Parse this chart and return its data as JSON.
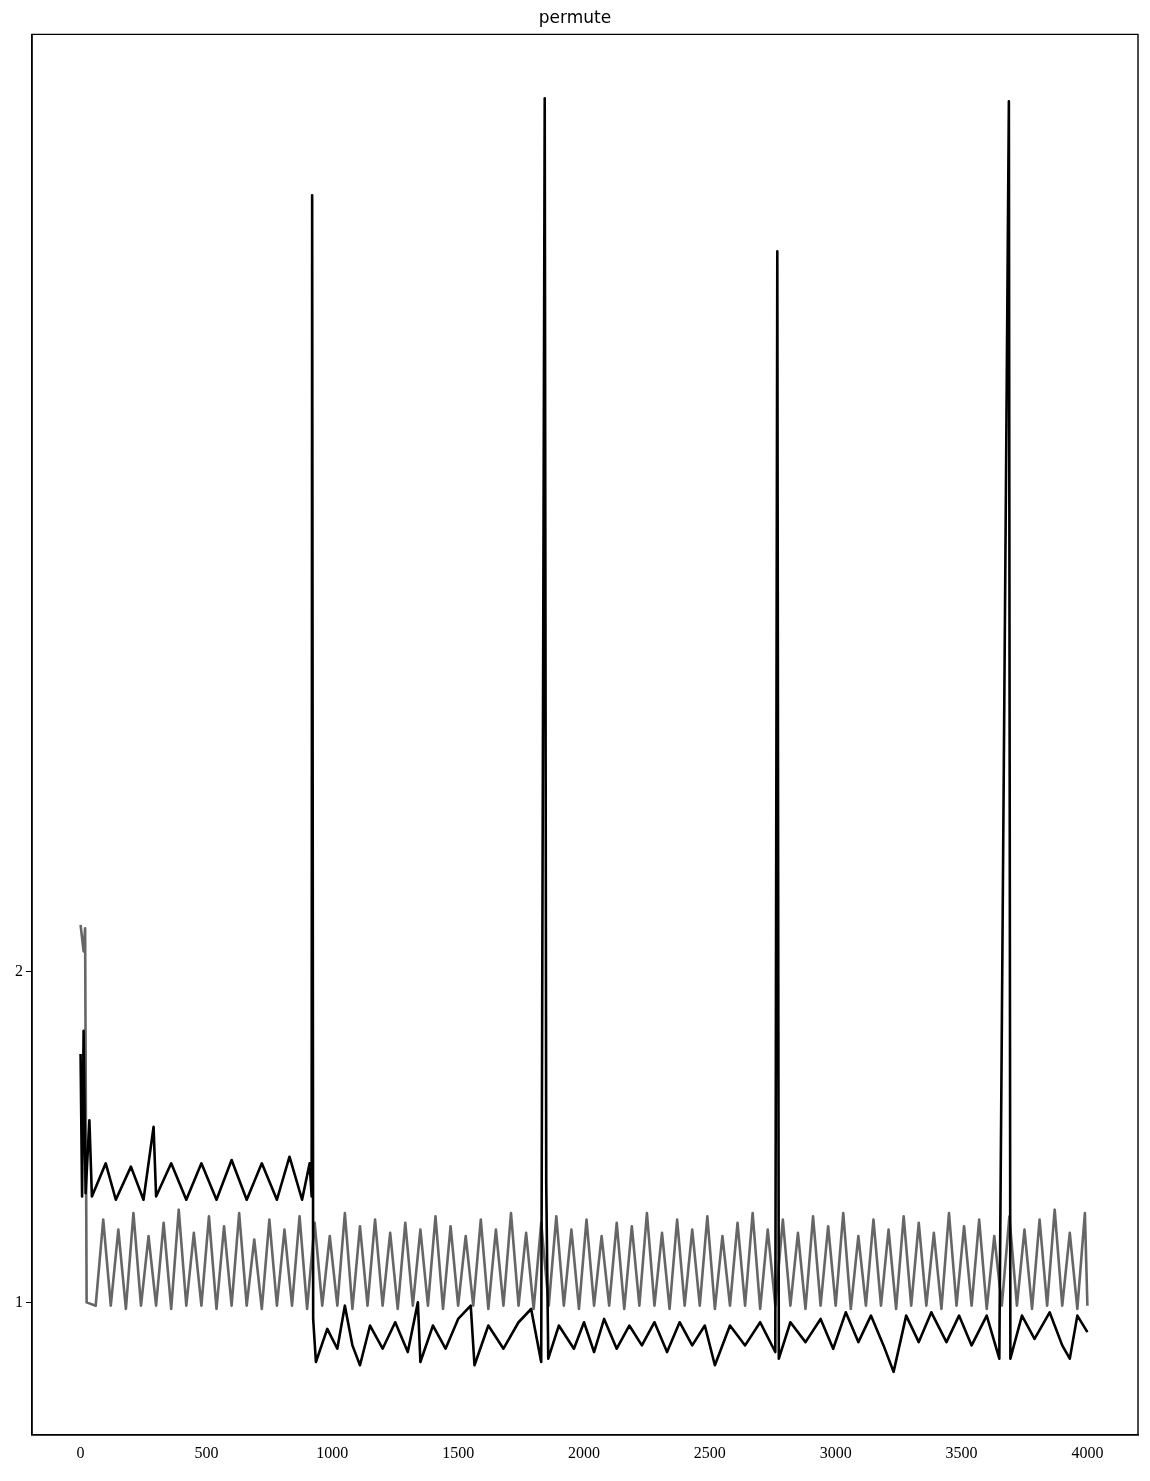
{
  "chart_data": {
    "type": "line",
    "title": "permute",
    "xlim": [
      -193,
      4201
    ],
    "xticks": [
      0,
      500,
      1000,
      1500,
      2000,
      2500,
      3000,
      3500,
      4000
    ],
    "ylim": [
      0.6,
      4.83
    ],
    "yticks": [
      1,
      2
    ],
    "grid": false,
    "legend": false,
    "marker": "none",
    "line_style": "solid",
    "series": [
      {
        "color": "#666666",
        "x": [
          0,
          12,
          18,
          24,
          60,
          90,
          120,
          150,
          180,
          210,
          240,
          270,
          300,
          330,
          360,
          390,
          420,
          450,
          480,
          510,
          540,
          570,
          600,
          630,
          660,
          690,
          720,
          750,
          780,
          810,
          840,
          870,
          900,
          930,
          960,
          990,
          1020,
          1050,
          1080,
          1110,
          1140,
          1170,
          1200,
          1230,
          1260,
          1290,
          1320,
          1350,
          1380,
          1410,
          1440,
          1470,
          1500,
          1530,
          1560,
          1590,
          1620,
          1650,
          1680,
          1710,
          1740,
          1770,
          1800,
          1830,
          1860,
          1890,
          1920,
          1950,
          1980,
          2010,
          2040,
          2070,
          2100,
          2130,
          2160,
          2190,
          2220,
          2250,
          2280,
          2310,
          2340,
          2370,
          2400,
          2430,
          2460,
          2490,
          2520,
          2550,
          2580,
          2610,
          2640,
          2670,
          2700,
          2730,
          2760,
          2790,
          2820,
          2850,
          2880,
          2910,
          2940,
          2970,
          3000,
          3030,
          3060,
          3090,
          3120,
          3150,
          3180,
          3210,
          3240,
          3270,
          3300,
          3330,
          3360,
          3390,
          3420,
          3450,
          3480,
          3510,
          3540,
          3570,
          3600,
          3630,
          3660,
          3690,
          3720,
          3750,
          3780,
          3810,
          3840,
          3870,
          3900,
          3930,
          3960,
          3990,
          4000
        ],
        "values": [
          2.14,
          2.06,
          2.13,
          1.0,
          0.99,
          1.25,
          0.99,
          1.22,
          0.98,
          1.27,
          0.99,
          1.2,
          0.99,
          1.24,
          0.98,
          1.28,
          0.99,
          1.21,
          0.99,
          1.26,
          0.98,
          1.23,
          0.99,
          1.27,
          0.99,
          1.19,
          0.98,
          1.25,
          0.99,
          1.22,
          0.99,
          1.26,
          0.98,
          1.24,
          0.99,
          1.2,
          0.99,
          1.27,
          0.98,
          1.23,
          0.99,
          1.25,
          0.99,
          1.21,
          0.98,
          1.24,
          0.99,
          1.22,
          0.99,
          1.26,
          0.98,
          1.23,
          0.99,
          1.2,
          0.99,
          1.25,
          0.98,
          1.22,
          0.99,
          1.27,
          0.99,
          1.21,
          0.98,
          1.24,
          0.99,
          1.26,
          0.99,
          1.22,
          0.98,
          1.25,
          0.99,
          1.2,
          0.99,
          1.24,
          0.98,
          1.23,
          0.99,
          1.27,
          0.99,
          1.21,
          0.98,
          1.25,
          0.99,
          1.22,
          0.99,
          1.26,
          0.98,
          1.2,
          0.99,
          1.24,
          0.99,
          1.27,
          0.98,
          1.22,
          0.99,
          1.25,
          0.99,
          1.21,
          0.98,
          1.26,
          0.99,
          1.23,
          0.99,
          1.27,
          0.98,
          1.2,
          0.99,
          1.25,
          0.99,
          1.22,
          0.98,
          1.26,
          0.99,
          1.24,
          0.99,
          1.21,
          0.98,
          1.27,
          0.99,
          1.23,
          0.99,
          1.25,
          0.98,
          1.2,
          0.99,
          1.26,
          0.99,
          1.22,
          0.98,
          1.25,
          0.99,
          1.28,
          0.99,
          1.21,
          0.98,
          1.27,
          0.99
        ]
      },
      {
        "color": "#000000",
        "x": [
          0,
          6,
          12,
          20,
          35,
          45,
          100,
          140,
          200,
          250,
          290,
          300,
          360,
          420,
          480,
          540,
          600,
          660,
          720,
          780,
          830,
          880,
          910,
          918,
          920,
          924,
          935,
          980,
          1020,
          1050,
          1080,
          1110,
          1150,
          1200,
          1250,
          1300,
          1340,
          1350,
          1400,
          1450,
          1500,
          1550,
          1565,
          1620,
          1680,
          1740,
          1790,
          1830,
          1844,
          1850,
          1858,
          1900,
          1960,
          2000,
          2040,
          2080,
          2130,
          2180,
          2230,
          2280,
          2330,
          2380,
          2430,
          2480,
          2520,
          2580,
          2640,
          2700,
          2760,
          2768,
          2774,
          2820,
          2880,
          2940,
          2990,
          3040,
          3090,
          3140,
          3190,
          3230,
          3280,
          3330,
          3380,
          3440,
          3490,
          3540,
          3600,
          3650,
          3688,
          3694,
          3740,
          3790,
          3850,
          3900,
          3930,
          3960,
          4000
        ],
        "values": [
          1.75,
          1.32,
          1.82,
          1.33,
          1.55,
          1.32,
          1.42,
          1.31,
          1.41,
          1.31,
          1.53,
          1.32,
          1.42,
          1.31,
          1.42,
          1.31,
          1.43,
          1.31,
          1.42,
          1.31,
          1.44,
          1.31,
          1.42,
          1.32,
          4.344,
          0.95,
          0.82,
          0.92,
          0.86,
          0.99,
          0.87,
          0.81,
          0.93,
          0.86,
          0.94,
          0.85,
          1.0,
          0.82,
          0.93,
          0.86,
          0.95,
          0.99,
          0.81,
          0.93,
          0.86,
          0.94,
          0.98,
          0.82,
          4.637,
          1.36,
          0.83,
          0.93,
          0.86,
          0.94,
          0.85,
          0.95,
          0.86,
          0.93,
          0.87,
          0.94,
          0.85,
          0.94,
          0.87,
          0.93,
          0.81,
          0.93,
          0.87,
          0.94,
          0.85,
          4.175,
          0.83,
          0.94,
          0.88,
          0.95,
          0.86,
          0.97,
          0.88,
          0.96,
          0.87,
          0.79,
          0.96,
          0.88,
          0.97,
          0.88,
          0.96,
          0.87,
          0.96,
          0.83,
          4.628,
          0.83,
          0.96,
          0.89,
          0.97,
          0.87,
          0.83,
          0.96,
          0.91
        ]
      }
    ]
  }
}
